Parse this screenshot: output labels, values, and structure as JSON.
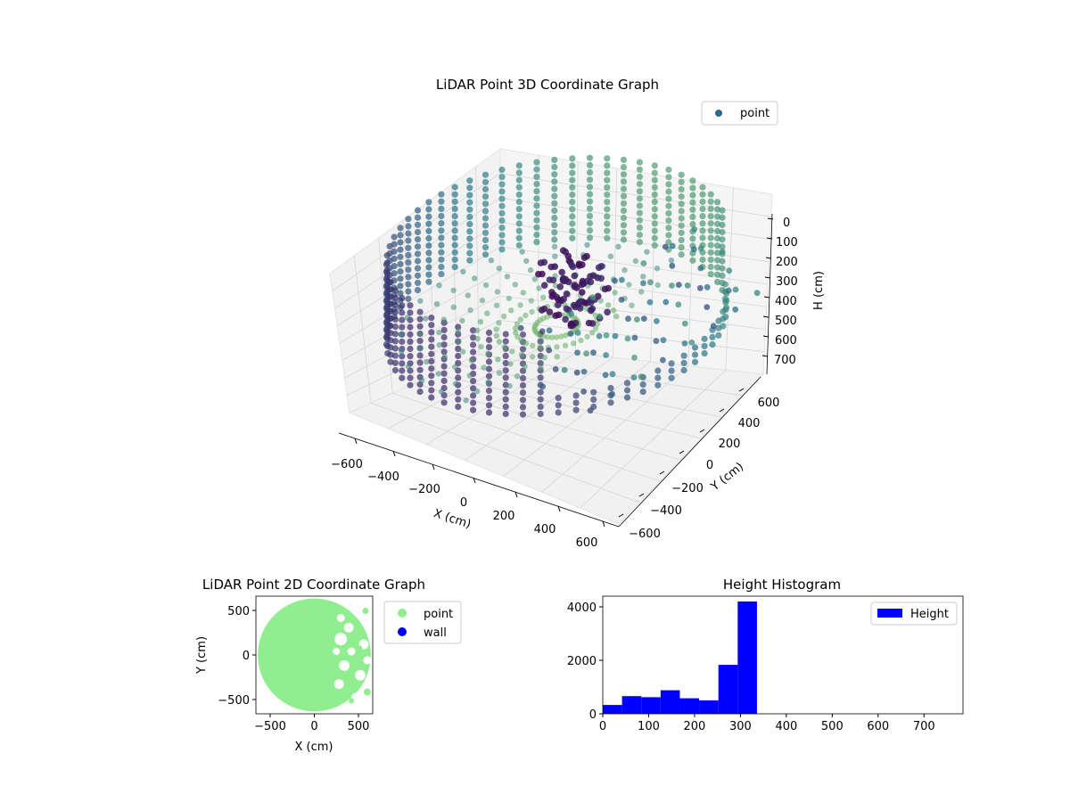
{
  "colors": {
    "surface_low": "#440154",
    "surface_mid": "#2a788e",
    "surface_high": "#8fd744",
    "point_2d": "#90ee90",
    "wall_2d": "#0000ff",
    "histogram": "#0000ff",
    "legend_marker_3d": "#31688e"
  },
  "chart_data": [
    {
      "type": "scatter",
      "subtype": "scatter3d",
      "title": "LiDAR Point 3D Coordinate Graph",
      "xlabel": "X (cm)",
      "ylabel": "Y (cm)",
      "zlabel": "H (cm)",
      "xlim": [
        -650,
        650
      ],
      "ylim": [
        -650,
        650
      ],
      "zlim": [
        750,
        0
      ],
      "x_ticks": [
        "−600",
        "−400",
        "−200",
        "0",
        "200",
        "400",
        "600"
      ],
      "y_ticks": [
        "−600",
        "−400",
        "−200",
        "0",
        "200",
        "400",
        "600"
      ],
      "z_ticks": [
        "0",
        "100",
        "200",
        "300",
        "400",
        "500",
        "600",
        "700"
      ],
      "z_axis_inverted": true,
      "legend": [
        "point"
      ],
      "legend_position": "upper-right",
      "colormap": "viridis",
      "description_series": [
        {
          "name": "point",
          "shape": "cylindrical wall ring, radius ≈ 620 cm, height 0–330 cm; dense object near center-right (x≈100, y≈0) reaching H≈20; scattered points toward +x side"
        }
      ]
    },
    {
      "type": "scatter",
      "title": "LiDAR Point 2D Coordinate Graph",
      "xlabel": "X (cm)",
      "ylabel": "Y (cm)",
      "xlim": [
        -650,
        650
      ],
      "ylim": [
        -650,
        650
      ],
      "x_ticks": [
        "−500",
        "0",
        "500"
      ],
      "y_ticks": [
        "−500",
        "0",
        "500"
      ],
      "legend": [
        "point",
        "wall"
      ],
      "legend_position": "outside-right",
      "series": [
        {
          "name": "point",
          "color": "#90ee90",
          "shape": "filled disk radius ≈ 640 cm, notched on +x side"
        },
        {
          "name": "wall",
          "color": "#0000ff",
          "values": []
        }
      ]
    },
    {
      "type": "bar",
      "subtype": "histogram",
      "title": "Height Histogram",
      "xlabel": "",
      "ylabel": "",
      "xlim": [
        0,
        785
      ],
      "ylim": [
        0,
        4400
      ],
      "x_ticks": [
        "0",
        "100",
        "200",
        "300",
        "400",
        "500",
        "600",
        "700"
      ],
      "y_ticks": [
        "0",
        "2000",
        "4000"
      ],
      "bin_width": 42,
      "bin_starts": [
        0,
        42,
        84,
        126,
        168,
        210,
        252,
        294
      ],
      "values": [
        330,
        660,
        620,
        880,
        580,
        500,
        1830,
        4200
      ],
      "legend": [
        "Height"
      ],
      "legend_position": "upper-right",
      "color": "#0000ff"
    }
  ]
}
